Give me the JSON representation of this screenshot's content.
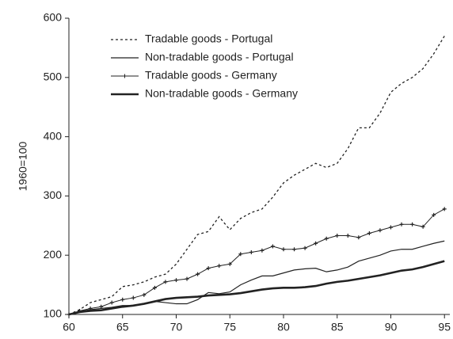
{
  "chart_data": {
    "type": "line",
    "y_label": "1960=100",
    "x": [
      60,
      61,
      62,
      63,
      64,
      65,
      66,
      67,
      68,
      69,
      70,
      71,
      72,
      73,
      74,
      75,
      76,
      77,
      78,
      79,
      80,
      81,
      82,
      83,
      84,
      85,
      86,
      87,
      88,
      89,
      90,
      91,
      92,
      93,
      94,
      95
    ],
    "xlim": [
      60,
      95.5
    ],
    "xticks": [
      60,
      65,
      70,
      75,
      80,
      85,
      90,
      95
    ],
    "ylim": [
      100,
      600
    ],
    "yticks": [
      100,
      200,
      300,
      400,
      500,
      600
    ],
    "grid": false,
    "legend": "top-left",
    "series": [
      {
        "name": "Tradable goods - Portugal",
        "color": "#222",
        "style": "dashed",
        "values": [
          100,
          108,
          120,
          125,
          130,
          147,
          150,
          155,
          163,
          168,
          185,
          210,
          235,
          240,
          265,
          243,
          262,
          272,
          278,
          298,
          322,
          335,
          345,
          355,
          348,
          355,
          380,
          415,
          415,
          440,
          475,
          490,
          500,
          515,
          540,
          570
        ]
      },
      {
        "name": "Non-tradable goods - Portugal",
        "color": "#222",
        "style": "solid",
        "values": [
          100,
          105,
          108,
          110,
          112,
          115,
          115,
          118,
          122,
          120,
          118,
          118,
          125,
          137,
          135,
          138,
          150,
          158,
          165,
          165,
          170,
          175,
          177,
          178,
          172,
          175,
          180,
          190,
          195,
          200,
          207,
          210,
          210,
          215,
          220,
          224
        ]
      },
      {
        "name": "Tradable goods - Germany",
        "color": "#222",
        "style": "markers",
        "values": [
          100,
          106,
          110,
          113,
          120,
          125,
          128,
          133,
          145,
          155,
          158,
          160,
          168,
          178,
          182,
          185,
          202,
          205,
          208,
          215,
          210,
          210,
          212,
          220,
          228,
          233,
          233,
          230,
          237,
          242,
          247,
          252,
          252,
          248,
          268,
          278
        ]
      },
      {
        "name": "Non-tradable goods - Germany",
        "color": "#222",
        "style": "thick",
        "values": [
          100,
          104,
          106,
          107,
          110,
          113,
          115,
          118,
          122,
          126,
          128,
          129,
          130,
          132,
          133,
          134,
          136,
          139,
          142,
          144,
          145,
          145,
          146,
          148,
          152,
          155,
          157,
          160,
          163,
          166,
          170,
          174,
          176,
          180,
          185,
          190
        ]
      }
    ]
  }
}
